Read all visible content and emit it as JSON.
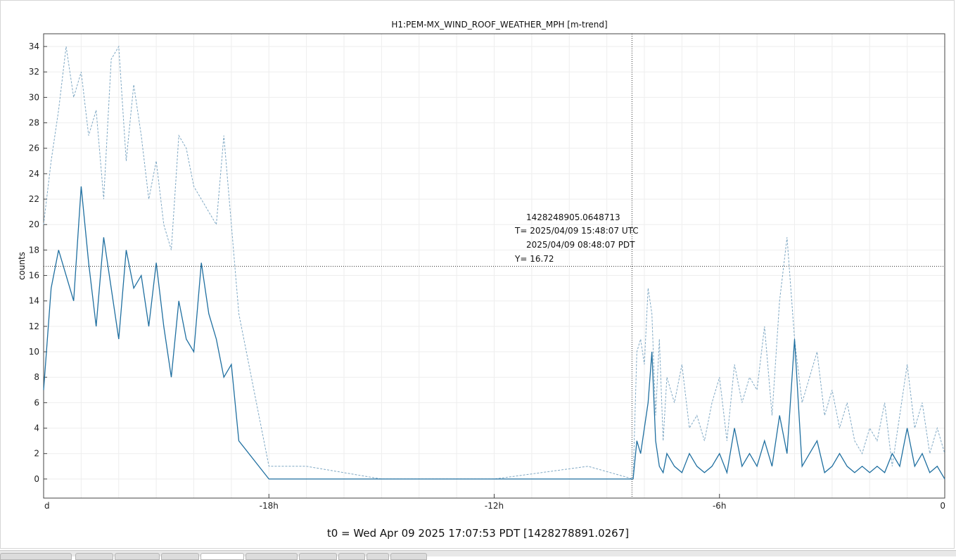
{
  "chart_data": {
    "type": "line",
    "title": "H1:PEM-MX_WIND_ROOF_WEATHER_MPH [m-trend]",
    "xlabel": "",
    "ylabel": "counts",
    "xlim": [
      -24,
      0
    ],
    "ylim": [
      -1.5,
      35
    ],
    "yticks": [
      0,
      2,
      4,
      6,
      8,
      10,
      12,
      14,
      16,
      18,
      20,
      22,
      24,
      26,
      28,
      30,
      32,
      34
    ],
    "xticks": [
      {
        "x": -24,
        "label": "d"
      },
      {
        "x": -18,
        "label": "-18h"
      },
      {
        "x": -12,
        "label": "-12h"
      },
      {
        "x": -6,
        "label": "-6h"
      },
      {
        "x": 0,
        "label": "0"
      }
    ],
    "grid": true,
    "series": [
      {
        "style": "solid",
        "color": "#1f6fa0",
        "x": [
          -24.0,
          -23.8,
          -23.6,
          -23.4,
          -23.2,
          -23.0,
          -22.8,
          -22.6,
          -22.4,
          -22.2,
          -22.0,
          -21.8,
          -21.6,
          -21.4,
          -21.2,
          -21.0,
          -20.8,
          -20.6,
          -20.4,
          -20.2,
          -20.0,
          -19.8,
          -19.6,
          -19.4,
          -19.2,
          -19.0,
          -18.8,
          -18.0,
          -15.0,
          -12.0,
          -9.5,
          -8.3,
          -8.2,
          -8.1,
          -8.0,
          -7.9,
          -7.8,
          -7.7,
          -7.6,
          -7.5,
          -7.4,
          -7.2,
          -7.0,
          -6.8,
          -6.6,
          -6.4,
          -6.2,
          -6.0,
          -5.8,
          -5.6,
          -5.4,
          -5.2,
          -5.0,
          -4.8,
          -4.6,
          -4.4,
          -4.2,
          -4.0,
          -3.8,
          -3.6,
          -3.4,
          -3.2,
          -3.0,
          -2.8,
          -2.6,
          -2.4,
          -2.2,
          -2.0,
          -1.8,
          -1.6,
          -1.4,
          -1.2,
          -1.0,
          -0.8,
          -0.6,
          -0.4,
          -0.2,
          0.0
        ],
        "y": [
          7,
          15,
          18,
          16,
          14,
          23,
          17,
          12,
          19,
          15,
          11,
          18,
          15,
          16,
          12,
          17,
          12,
          8,
          14,
          11,
          10,
          17,
          13,
          11,
          8,
          9,
          3,
          0,
          0,
          0,
          0,
          0,
          3,
          2,
          4,
          6,
          10,
          3,
          1,
          0.5,
          2,
          1,
          0.5,
          2,
          1,
          0.5,
          1,
          2,
          0.5,
          4,
          1,
          2,
          1,
          3,
          1,
          5,
          2,
          11,
          1,
          2,
          3,
          0.5,
          1,
          2,
          1,
          0.5,
          1,
          0.5,
          1,
          0.5,
          2,
          1,
          4,
          1,
          2,
          0.5,
          1,
          0
        ]
      },
      {
        "style": "dashed",
        "color": "#7fa8c4",
        "x": [
          -24.0,
          -23.8,
          -23.6,
          -23.4,
          -23.2,
          -23.0,
          -22.8,
          -22.6,
          -22.4,
          -22.2,
          -22.0,
          -21.8,
          -21.6,
          -21.4,
          -21.2,
          -21.0,
          -20.8,
          -20.6,
          -20.4,
          -20.2,
          -20.0,
          -19.8,
          -19.6,
          -19.4,
          -19.2,
          -19.0,
          -18.8,
          -18.0,
          -17.5,
          -17.0,
          -15.0,
          -12.0,
          -9.5,
          -8.3,
          -8.2,
          -8.1,
          -8.0,
          -7.9,
          -7.8,
          -7.7,
          -7.6,
          -7.5,
          -7.4,
          -7.2,
          -7.0,
          -6.8,
          -6.6,
          -6.4,
          -6.2,
          -6.0,
          -5.8,
          -5.6,
          -5.4,
          -5.2,
          -5.0,
          -4.8,
          -4.6,
          -4.4,
          -4.2,
          -4.0,
          -3.8,
          -3.6,
          -3.4,
          -3.2,
          -3.0,
          -2.8,
          -2.6,
          -2.4,
          -2.2,
          -2.0,
          -1.8,
          -1.6,
          -1.4,
          -1.2,
          -1.0,
          -0.8,
          -0.6,
          -0.4,
          -0.2,
          0.0
        ],
        "y": [
          20,
          25,
          29,
          34,
          30,
          32,
          27,
          29,
          22,
          33,
          34,
          25,
          31,
          27,
          22,
          25,
          20,
          18,
          27,
          26,
          23,
          22,
          21,
          20,
          27,
          20,
          13,
          1,
          1,
          1,
          0,
          0,
          1,
          0,
          10,
          11,
          9,
          15,
          13,
          5,
          11,
          3,
          8,
          6,
          9,
          4,
          5,
          3,
          6,
          8,
          3,
          9,
          6,
          8,
          7,
          12,
          5,
          14,
          19,
          11,
          6,
          8,
          10,
          5,
          7,
          4,
          6,
          3,
          2,
          4,
          3,
          6,
          1,
          5,
          9,
          4,
          6,
          2,
          4,
          2
        ]
      }
    ],
    "cursor": {
      "x": -8.33,
      "y": 16.72,
      "lines": [
        "1428248905.0648713",
        "T= 2025/04/09 15:48:07 UTC",
        "2025/04/09 08:48:07 PDT",
        "Y= 16.72"
      ]
    }
  },
  "t0_label": "t0 = Wed Apr 09 2025 17:07:53 PDT [1428278891.0267]",
  "tabs_count": 10,
  "active_tab_index": 4
}
